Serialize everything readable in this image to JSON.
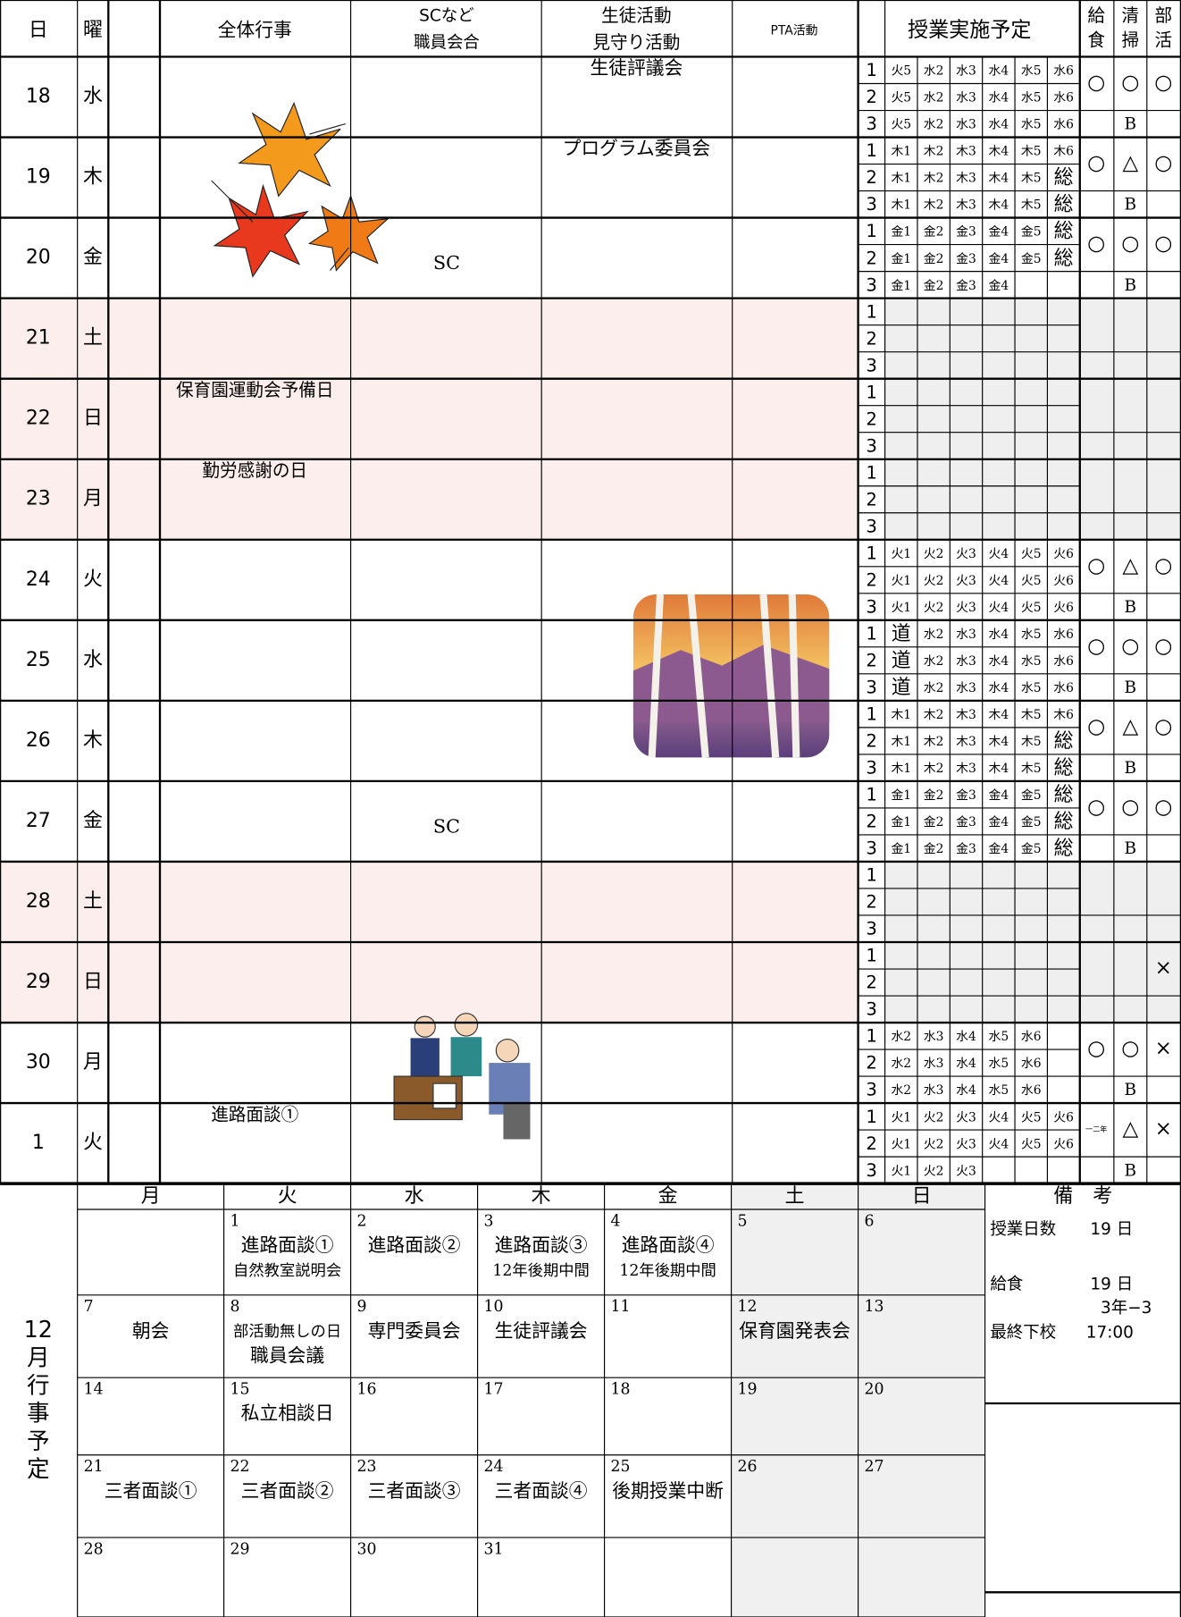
{
  "header": {
    "day": "日",
    "weekday": "曜",
    "events": "全体行事",
    "sc": [
      "SCなど",
      "職員会合"
    ],
    "student": [
      "生徒活動",
      "見守り活動"
    ],
    "pta": "PTA活動",
    "classes": "授業実施予定",
    "lunch": [
      "給",
      "食"
    ],
    "clean": [
      "清",
      "掃"
    ],
    "club": [
      "部",
      "活"
    ]
  },
  "period_labels": [
    "1",
    "2",
    "3"
  ],
  "rows": [
    {
      "day": "18",
      "weekday": "水",
      "student": "生徒評議会",
      "periods": [
        [
          "火5",
          "水2",
          "水3",
          "水4",
          "水5",
          "水6"
        ],
        [
          "火5",
          "水2",
          "水3",
          "水4",
          "水5",
          "水6"
        ],
        [
          "火5",
          "水2",
          "水3",
          "水4",
          "水5",
          "水6"
        ]
      ],
      "lunch": "○",
      "clean": "○",
      "club": "○",
      "note": "B"
    },
    {
      "day": "19",
      "weekday": "木",
      "student": "プログラム委員会",
      "periods": [
        [
          "木1",
          "木2",
          "木3",
          "木4",
          "木5",
          "木6"
        ],
        [
          "木1",
          "木2",
          "木3",
          "木4",
          "木5",
          "総"
        ],
        [
          "木1",
          "木2",
          "木3",
          "木4",
          "木5",
          "総"
        ]
      ],
      "lunch": "○",
      "clean": "△",
      "club": "○",
      "note": "B"
    },
    {
      "day": "20",
      "weekday": "金",
      "sc": "SC",
      "periods": [
        [
          "金1",
          "金2",
          "金3",
          "金4",
          "金5",
          "総"
        ],
        [
          "金1",
          "金2",
          "金3",
          "金4",
          "金5",
          "総"
        ],
        [
          "金1",
          "金2",
          "金3",
          "金4",
          null,
          null
        ]
      ],
      "lunch": "○",
      "clean": "○",
      "club": "○",
      "note": "B"
    },
    {
      "day": "21",
      "weekday": "土",
      "holiday": true
    },
    {
      "day": "22",
      "weekday": "日",
      "holiday": true,
      "events": "保育園運動会予備日"
    },
    {
      "day": "23",
      "weekday": "月",
      "holiday": true,
      "events": "勤労感謝の日"
    },
    {
      "day": "24",
      "weekday": "火",
      "periods": [
        [
          "火1",
          "火2",
          "火3",
          "火4",
          "火5",
          "火6"
        ],
        [
          "火1",
          "火2",
          "火3",
          "火4",
          "火5",
          "火6"
        ],
        [
          "火1",
          "火2",
          "火3",
          "火4",
          "火5",
          "火6"
        ]
      ],
      "lunch": "○",
      "clean": "△",
      "club": "○",
      "note": "B"
    },
    {
      "day": "25",
      "weekday": "水",
      "periods": [
        [
          "道",
          "水2",
          "水3",
          "水4",
          "水5",
          "水6"
        ],
        [
          "道",
          "水2",
          "水3",
          "水4",
          "水5",
          "水6"
        ],
        [
          "道",
          "水2",
          "水3",
          "水4",
          "水5",
          "水6"
        ]
      ],
      "lunch": "○",
      "clean": "○",
      "club": "○",
      "note": "B"
    },
    {
      "day": "26",
      "weekday": "木",
      "periods": [
        [
          "木1",
          "木2",
          "木3",
          "木4",
          "木5",
          "木6"
        ],
        [
          "木1",
          "木2",
          "木3",
          "木4",
          "木5",
          "総"
        ],
        [
          "木1",
          "木2",
          "木3",
          "木4",
          "木5",
          "総"
        ]
      ],
      "lunch": "○",
      "clean": "△",
      "club": "○",
      "note": "B"
    },
    {
      "day": "27",
      "weekday": "金",
      "sc": "SC",
      "periods": [
        [
          "金1",
          "金2",
          "金3",
          "金4",
          "金5",
          "総"
        ],
        [
          "金1",
          "金2",
          "金3",
          "金4",
          "金5",
          "総"
        ],
        [
          "金1",
          "金2",
          "金3",
          "金4",
          "金5",
          "総"
        ]
      ],
      "lunch": "○",
      "clean": "○",
      "club": "○",
      "note": "B"
    },
    {
      "day": "28",
      "weekday": "土",
      "holiday": true
    },
    {
      "day": "29",
      "weekday": "日",
      "holiday": true,
      "club": "×"
    },
    {
      "day": "30",
      "weekday": "月",
      "periods": [
        [
          "水2",
          "水3",
          "水4",
          "水5",
          "水6",
          null
        ],
        [
          "水2",
          "水3",
          "水4",
          "水5",
          "水6",
          null
        ],
        [
          "水2",
          "水3",
          "水4",
          "水5",
          "水6",
          null
        ]
      ],
      "lunch": "○",
      "clean": "○",
      "club": "×",
      "note": "B"
    },
    {
      "day": "1",
      "weekday": "火",
      "events": "進路面談①",
      "periods": [
        [
          "火1",
          "火2",
          "火3",
          "火4",
          "火5",
          "火6"
        ],
        [
          "火1",
          "火2",
          "火3",
          "火4",
          "火5",
          "火6"
        ],
        [
          "火1",
          "火2",
          "火3",
          null,
          null,
          null
        ]
      ],
      "lunch": "一二年",
      "clean": "△",
      "club": "×",
      "note": "B"
    }
  ],
  "calendar": {
    "title": [
      "12",
      "月",
      "行",
      "事",
      "予",
      "定"
    ],
    "weekdays": [
      "月",
      "火",
      "水",
      "木",
      "金",
      "土",
      "日"
    ],
    "weeks": [
      [
        null,
        {
          "day": "1",
          "texts": [
            "進路面談①",
            "自然教室説明会"
          ]
        },
        {
          "day": "2",
          "texts": [
            "進路面談②"
          ]
        },
        {
          "day": "3",
          "texts": [
            "進路面談③",
            "12年後期中間"
          ]
        },
        {
          "day": "4",
          "texts": [
            "進路面談④",
            "12年後期中間"
          ]
        },
        {
          "day": "5"
        },
        {
          "day": "6"
        }
      ],
      [
        {
          "day": "7",
          "texts": [
            "朝会"
          ]
        },
        {
          "day": "8",
          "texts": [
            "部活動無しの日",
            "職員会議"
          ]
        },
        {
          "day": "9",
          "texts": [
            "専門委員会"
          ]
        },
        {
          "day": "10",
          "texts": [
            "生徒評議会"
          ]
        },
        {
          "day": "11"
        },
        {
          "day": "12",
          "texts": [
            "保育園発表会"
          ]
        },
        {
          "day": "13"
        }
      ],
      [
        {
          "day": "14"
        },
        {
          "day": "15",
          "texts": [
            "私立相談日"
          ]
        },
        {
          "day": "16"
        },
        {
          "day": "17"
        },
        {
          "day": "18"
        },
        {
          "day": "19"
        },
        {
          "day": "20"
        }
      ],
      [
        {
          "day": "21",
          "texts": [
            "三者面談①"
          ]
        },
        {
          "day": "22",
          "texts": [
            "三者面談②"
          ]
        },
        {
          "day": "23",
          "texts": [
            "三者面談③"
          ]
        },
        {
          "day": "24",
          "texts": [
            "三者面談④"
          ]
        },
        {
          "day": "25",
          "texts": [
            "後期授業中断"
          ]
        },
        {
          "day": "26"
        },
        {
          "day": "27"
        }
      ],
      [
        {
          "day": "28"
        },
        {
          "day": "29"
        },
        {
          "day": "30"
        },
        {
          "day": "31"
        },
        null,
        null,
        null
      ]
    ]
  },
  "notes": {
    "title": "備　考",
    "class_days_label": "授業日数",
    "class_days": "19 日",
    "lunch_label": "給食",
    "lunch_days": "19 日",
    "lunch_extra": "3年−3",
    "dismissal_label": "最終下校",
    "dismissal": "17:00"
  }
}
